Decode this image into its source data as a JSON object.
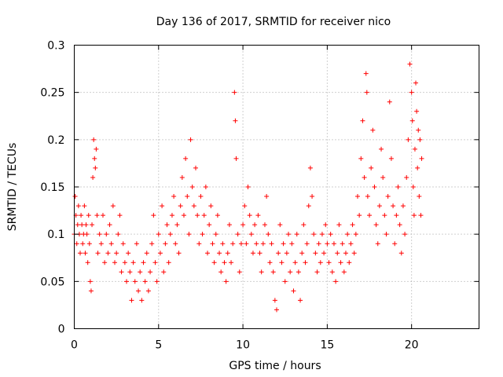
{
  "chart_data": {
    "type": "scatter",
    "title": "Day 136 of 2017, SRMTID for receiver nico",
    "xlabel": "GPS time / hours",
    "ylabel": "SRMTID / TECUs",
    "xlim": [
      0,
      24
    ],
    "ylim": [
      0,
      0.3
    ],
    "x_ticks": [
      0,
      5,
      10,
      15,
      20
    ],
    "x_tick_labels": [
      "0",
      "5",
      "10",
      "15",
      "20"
    ],
    "y_ticks": [
      0,
      0.05,
      0.1,
      0.15,
      0.2,
      0.25,
      0.3
    ],
    "y_tick_labels": [
      "0",
      "0.05",
      "0.1",
      "0.15",
      "0.2",
      "0.25",
      "0.3"
    ],
    "grid": true,
    "marker": "plus",
    "colors": {
      "points": "#ff0000",
      "frame": "#000000",
      "grid": "#a0a0a0"
    },
    "series": [
      {
        "points": [
          [
            0.0,
            0.1
          ],
          [
            0.05,
            0.14
          ],
          [
            0.1,
            0.12
          ],
          [
            0.15,
            0.09
          ],
          [
            0.2,
            0.11
          ],
          [
            0.25,
            0.13
          ],
          [
            0.3,
            0.1
          ],
          [
            0.35,
            0.08
          ],
          [
            0.4,
            0.12
          ],
          [
            0.45,
            0.11
          ],
          [
            0.5,
            0.09
          ],
          [
            0.55,
            0.1
          ],
          [
            0.6,
            0.13
          ],
          [
            0.65,
            0.08
          ],
          [
            0.7,
            0.11
          ],
          [
            0.75,
            0.1
          ],
          [
            0.8,
            0.07
          ],
          [
            0.85,
            0.12
          ],
          [
            0.9,
            0.09
          ],
          [
            0.95,
            0.05
          ],
          [
            1.0,
            0.04
          ],
          [
            1.05,
            0.11
          ],
          [
            1.1,
            0.16
          ],
          [
            1.15,
            0.2
          ],
          [
            1.2,
            0.18
          ],
          [
            1.25,
            0.17
          ],
          [
            1.3,
            0.19
          ],
          [
            1.35,
            0.12
          ],
          [
            1.4,
            0.08
          ],
          [
            1.5,
            0.1
          ],
          [
            1.6,
            0.09
          ],
          [
            1.7,
            0.12
          ],
          [
            1.8,
            0.07
          ],
          [
            1.9,
            0.1
          ],
          [
            2.0,
            0.08
          ],
          [
            2.1,
            0.11
          ],
          [
            2.2,
            0.09
          ],
          [
            2.3,
            0.13
          ],
          [
            2.4,
            0.07
          ],
          [
            2.5,
            0.08
          ],
          [
            2.6,
            0.1
          ],
          [
            2.7,
            0.12
          ],
          [
            2.8,
            0.06
          ],
          [
            2.9,
            0.09
          ],
          [
            3.0,
            0.07
          ],
          [
            3.1,
            0.05
          ],
          [
            3.2,
            0.08
          ],
          [
            3.3,
            0.06
          ],
          [
            3.4,
            0.03
          ],
          [
            3.5,
            0.07
          ],
          [
            3.6,
            0.05
          ],
          [
            3.7,
            0.09
          ],
          [
            3.8,
            0.04
          ],
          [
            3.9,
            0.06
          ],
          [
            4.0,
            0.03
          ],
          [
            4.1,
            0.07
          ],
          [
            4.2,
            0.05
          ],
          [
            4.3,
            0.08
          ],
          [
            4.4,
            0.04
          ],
          [
            4.5,
            0.06
          ],
          [
            4.6,
            0.09
          ],
          [
            4.7,
            0.12
          ],
          [
            4.8,
            0.07
          ],
          [
            4.9,
            0.05
          ],
          [
            5.0,
            0.1
          ],
          [
            5.1,
            0.08
          ],
          [
            5.2,
            0.13
          ],
          [
            5.3,
            0.06
          ],
          [
            5.4,
            0.09
          ],
          [
            5.5,
            0.11
          ],
          [
            5.6,
            0.07
          ],
          [
            5.7,
            0.1
          ],
          [
            5.8,
            0.12
          ],
          [
            5.9,
            0.14
          ],
          [
            6.0,
            0.09
          ],
          [
            6.1,
            0.11
          ],
          [
            6.2,
            0.08
          ],
          [
            6.3,
            0.13
          ],
          [
            6.4,
            0.16
          ],
          [
            6.5,
            0.12
          ],
          [
            6.6,
            0.18
          ],
          [
            6.7,
            0.14
          ],
          [
            6.8,
            0.1
          ],
          [
            6.9,
            0.2
          ],
          [
            7.0,
            0.15
          ],
          [
            7.1,
            0.13
          ],
          [
            7.2,
            0.17
          ],
          [
            7.3,
            0.12
          ],
          [
            7.4,
            0.09
          ],
          [
            7.5,
            0.14
          ],
          [
            7.6,
            0.1
          ],
          [
            7.7,
            0.12
          ],
          [
            7.8,
            0.15
          ],
          [
            7.9,
            0.08
          ],
          [
            8.0,
            0.11
          ],
          [
            8.1,
            0.13
          ],
          [
            8.2,
            0.09
          ],
          [
            8.3,
            0.07
          ],
          [
            8.4,
            0.1
          ],
          [
            8.5,
            0.12
          ],
          [
            8.6,
            0.08
          ],
          [
            8.7,
            0.06
          ],
          [
            8.8,
            0.09
          ],
          [
            8.9,
            0.07
          ],
          [
            9.0,
            0.05
          ],
          [
            9.1,
            0.08
          ],
          [
            9.2,
            0.11
          ],
          [
            9.3,
            0.07
          ],
          [
            9.4,
            0.09
          ],
          [
            9.5,
            0.25
          ],
          [
            9.55,
            0.22
          ],
          [
            9.6,
            0.18
          ],
          [
            9.7,
            0.1
          ],
          [
            9.8,
            0.06
          ],
          [
            9.9,
            0.09
          ],
          [
            10.0,
            0.11
          ],
          [
            10.1,
            0.13
          ],
          [
            10.2,
            0.09
          ],
          [
            10.3,
            0.15
          ],
          [
            10.4,
            0.12
          ],
          [
            10.5,
            0.1
          ],
          [
            10.6,
            0.08
          ],
          [
            10.7,
            0.11
          ],
          [
            10.8,
            0.09
          ],
          [
            10.9,
            0.12
          ],
          [
            11.0,
            0.08
          ],
          [
            11.1,
            0.06
          ],
          [
            11.2,
            0.09
          ],
          [
            11.3,
            0.11
          ],
          [
            11.4,
            0.14
          ],
          [
            11.5,
            0.1
          ],
          [
            11.6,
            0.07
          ],
          [
            11.7,
            0.09
          ],
          [
            11.8,
            0.06
          ],
          [
            11.9,
            0.03
          ],
          [
            12.0,
            0.02
          ],
          [
            12.1,
            0.08
          ],
          [
            12.2,
            0.11
          ],
          [
            12.3,
            0.07
          ],
          [
            12.4,
            0.09
          ],
          [
            12.5,
            0.05
          ],
          [
            12.6,
            0.08
          ],
          [
            12.7,
            0.1
          ],
          [
            12.8,
            0.06
          ],
          [
            12.9,
            0.09
          ],
          [
            13.0,
            0.04
          ],
          [
            13.1,
            0.07
          ],
          [
            13.2,
            0.1
          ],
          [
            13.3,
            0.06
          ],
          [
            13.4,
            0.03
          ],
          [
            13.5,
            0.08
          ],
          [
            13.6,
            0.11
          ],
          [
            13.7,
            0.07
          ],
          [
            13.8,
            0.09
          ],
          [
            13.9,
            0.13
          ],
          [
            14.0,
            0.17
          ],
          [
            14.1,
            0.14
          ],
          [
            14.2,
            0.1
          ],
          [
            14.3,
            0.08
          ],
          [
            14.4,
            0.06
          ],
          [
            14.5,
            0.09
          ],
          [
            14.6,
            0.07
          ],
          [
            14.7,
            0.1
          ],
          [
            14.8,
            0.08
          ],
          [
            14.9,
            0.11
          ],
          [
            15.0,
            0.09
          ],
          [
            15.1,
            0.07
          ],
          [
            15.2,
            0.1
          ],
          [
            15.3,
            0.06
          ],
          [
            15.4,
            0.09
          ],
          [
            15.5,
            0.05
          ],
          [
            15.6,
            0.08
          ],
          [
            15.7,
            0.11
          ],
          [
            15.8,
            0.07
          ],
          [
            15.9,
            0.09
          ],
          [
            16.0,
            0.06
          ],
          [
            16.1,
            0.08
          ],
          [
            16.2,
            0.1
          ],
          [
            16.3,
            0.07
          ],
          [
            16.4,
            0.09
          ],
          [
            16.5,
            0.11
          ],
          [
            16.6,
            0.08
          ],
          [
            16.7,
            0.1
          ],
          [
            16.8,
            0.14
          ],
          [
            16.9,
            0.12
          ],
          [
            17.0,
            0.18
          ],
          [
            17.1,
            0.22
          ],
          [
            17.2,
            0.16
          ],
          [
            17.3,
            0.27
          ],
          [
            17.35,
            0.25
          ],
          [
            17.4,
            0.14
          ],
          [
            17.5,
            0.12
          ],
          [
            17.6,
            0.17
          ],
          [
            17.7,
            0.21
          ],
          [
            17.8,
            0.15
          ],
          [
            17.9,
            0.11
          ],
          [
            18.0,
            0.09
          ],
          [
            18.1,
            0.13
          ],
          [
            18.2,
            0.19
          ],
          [
            18.3,
            0.16
          ],
          [
            18.4,
            0.12
          ],
          [
            18.5,
            0.1
          ],
          [
            18.6,
            0.14
          ],
          [
            18.7,
            0.24
          ],
          [
            18.8,
            0.18
          ],
          [
            18.9,
            0.13
          ],
          [
            19.0,
            0.09
          ],
          [
            19.1,
            0.12
          ],
          [
            19.2,
            0.15
          ],
          [
            19.3,
            0.11
          ],
          [
            19.4,
            0.08
          ],
          [
            19.5,
            0.13
          ],
          [
            19.6,
            0.1
          ],
          [
            19.7,
            0.16
          ],
          [
            19.8,
            0.2
          ],
          [
            19.9,
            0.28
          ],
          [
            20.0,
            0.25
          ],
          [
            20.05,
            0.22
          ],
          [
            20.1,
            0.15
          ],
          [
            20.15,
            0.12
          ],
          [
            20.2,
            0.19
          ],
          [
            20.25,
            0.26
          ],
          [
            20.3,
            0.23
          ],
          [
            20.35,
            0.17
          ],
          [
            20.4,
            0.21
          ],
          [
            20.45,
            0.14
          ],
          [
            20.5,
            0.2
          ],
          [
            20.55,
            0.12
          ],
          [
            20.6,
            0.18
          ]
        ]
      }
    ]
  }
}
